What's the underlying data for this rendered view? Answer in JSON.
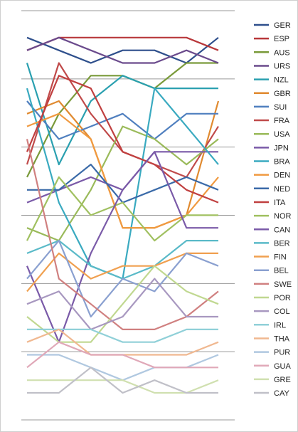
{
  "chart_data": {
    "type": "line",
    "title": "",
    "xlabel": "",
    "ylabel": "",
    "grid": true,
    "legend_position": "right",
    "n_points": 7,
    "rank_range": [
      1,
      30
    ],
    "series": [
      {
        "name": "GER",
        "color": "#2e4f8c",
        "values": [
          2,
          3,
          4,
          3,
          3,
          4,
          2
        ]
      },
      {
        "name": "ESP",
        "color": "#b8373a",
        "values": [
          3,
          2,
          2,
          2,
          2,
          2,
          3
        ]
      },
      {
        "name": "AUS",
        "color": "#7a9a3a",
        "values": [
          13,
          8,
          5,
          5,
          6,
          4,
          4
        ]
      },
      {
        "name": "URS",
        "color": "#6a4a8c",
        "values": [
          3,
          2,
          3,
          4,
          4,
          3,
          4
        ]
      },
      {
        "name": "NZL",
        "color": "#2aa0b0",
        "values": [
          4,
          12,
          7,
          5,
          6,
          6,
          6
        ]
      },
      {
        "name": "GBR",
        "color": "#e08a30",
        "values": [
          8,
          7,
          10,
          17,
          17,
          16,
          7
        ]
      },
      {
        "name": "SUI",
        "color": "#4f7fbf",
        "values": [
          7,
          10,
          9,
          8,
          10,
          8,
          8
        ]
      },
      {
        "name": "FRA",
        "color": "#c04a4a",
        "values": [
          12,
          4,
          8,
          11,
          12,
          13,
          9
        ]
      },
      {
        "name": "USA",
        "color": "#9aba5a",
        "values": [
          17,
          18,
          14,
          9,
          10,
          12,
          10
        ]
      },
      {
        "name": "JPN",
        "color": "#7a5aa8",
        "values": [
          15,
          14,
          13,
          14,
          11,
          11,
          11
        ]
      },
      {
        "name": "BRA",
        "color": "#3aaac0",
        "values": [
          6,
          15,
          20,
          21,
          6,
          9,
          12
        ]
      },
      {
        "name": "DEN",
        "color": "#f09a40",
        "values": [
          9,
          8,
          10,
          17,
          17,
          16,
          13
        ]
      },
      {
        "name": "NED",
        "color": "#3a6aa8",
        "values": [
          14,
          14,
          12,
          15,
          14,
          13,
          14
        ]
      },
      {
        "name": "ITA",
        "color": "#c04040",
        "values": [
          11,
          5,
          6,
          11,
          12,
          14,
          15
        ]
      },
      {
        "name": "NOR",
        "color": "#a0c060",
        "values": [
          18,
          13,
          16,
          15,
          18,
          16,
          16
        ]
      },
      {
        "name": "CAN",
        "color": "#7a5aa8",
        "values": [
          20,
          26,
          19,
          14,
          11,
          17,
          17
        ]
      },
      {
        "name": "BER",
        "color": "#5abac8",
        "values": [
          19,
          18,
          20,
          21,
          20,
          18,
          18
        ]
      },
      {
        "name": "FIN",
        "color": "#f0a050",
        "values": [
          22,
          19,
          21,
          20,
          20,
          19,
          19
        ]
      },
      {
        "name": "BEL",
        "color": "#8aa0d0",
        "values": [
          21,
          18,
          24,
          21,
          22,
          19,
          20
        ]
      },
      {
        "name": "SWE",
        "color": "#d08080",
        "values": [
          10,
          21,
          23,
          25,
          25,
          24,
          22
        ]
      },
      {
        "name": "POR",
        "color": "#c0d890",
        "values": [
          24,
          26,
          26,
          23,
          20,
          22,
          23
        ]
      },
      {
        "name": "COL",
        "color": "#a898c0",
        "values": [
          23,
          22,
          25,
          24,
          21,
          24,
          24
        ]
      },
      {
        "name": "IRL",
        "color": "#90d0d8",
        "values": [
          25,
          25,
          25,
          26,
          26,
          25,
          25
        ]
      },
      {
        "name": "THA",
        "color": "#f0b890",
        "values": [
          26,
          25,
          27,
          27,
          27,
          27,
          26
        ]
      },
      {
        "name": "PUR",
        "color": "#b0c8e0",
        "values": [
          27,
          27,
          28,
          29,
          28,
          28,
          27
        ]
      },
      {
        "name": "GUA",
        "color": "#e0a8b8",
        "values": [
          28,
          26,
          27,
          27,
          28,
          28,
          28
        ]
      },
      {
        "name": "GRE",
        "color": "#d0e0b0",
        "values": [
          29,
          29,
          29,
          29,
          30,
          30,
          29
        ]
      },
      {
        "name": "CAY",
        "color": "#c0c0c8",
        "values": [
          30,
          30,
          28,
          30,
          29,
          30,
          30
        ]
      }
    ]
  }
}
